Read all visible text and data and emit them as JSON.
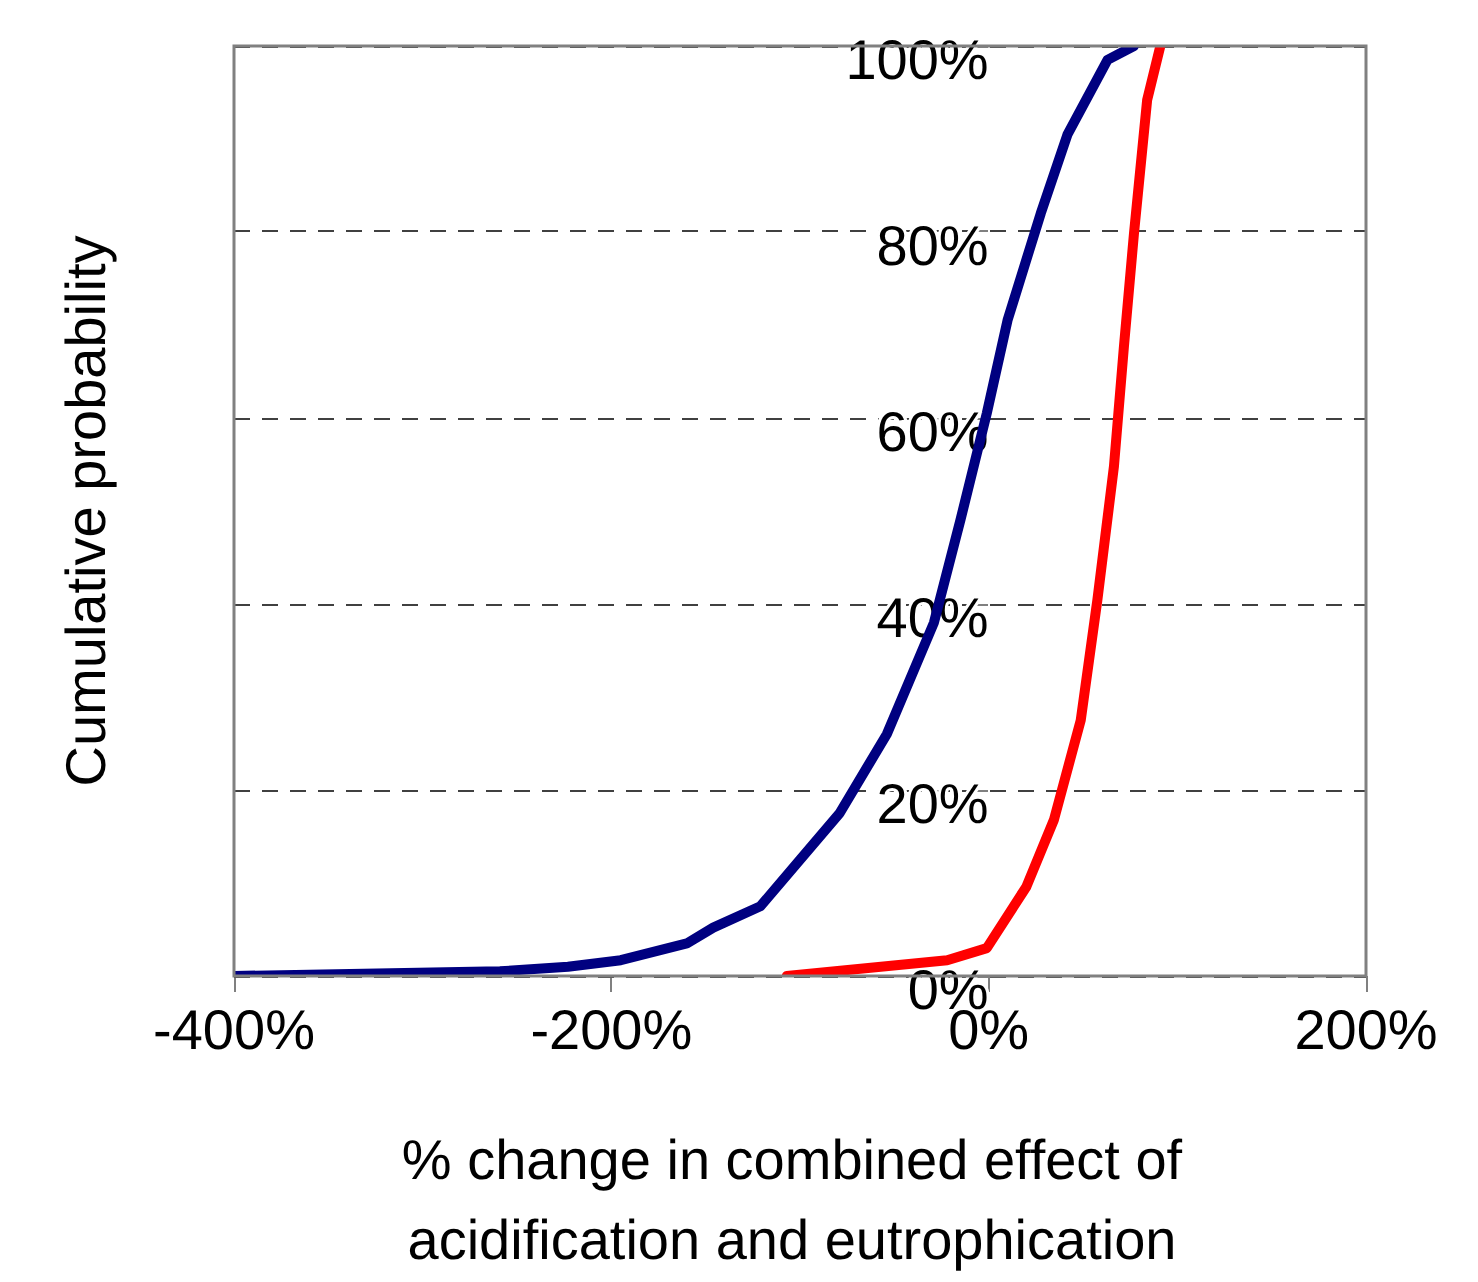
{
  "chart_data": {
    "type": "line",
    "xlabel": "% change in combined effect of acidification and eutrophication",
    "ylabel": "Cumulative probability",
    "series": [
      {
        "color": "#000080",
        "x": [
          -400,
          -259,
          -223,
          -195,
          -160,
          -146,
          -121,
          -100,
          -79,
          -54,
          -29,
          -15,
          -1,
          10,
          27.6,
          41.8,
          63,
          77
        ],
        "values": [
          0,
          0.5,
          1,
          1.7,
          3.5,
          5.2,
          7.5,
          12.5,
          17.5,
          26,
          38,
          49,
          60.5,
          70.5,
          82,
          90.5,
          98.5,
          100
        ]
      },
      {
        "color": "#ff0000",
        "x": [
          -107,
          -22,
          -1,
          20,
          34.6,
          48.8,
          57.6,
          66.4,
          71.7,
          77,
          84,
          91
        ],
        "values": [
          0,
          1.7,
          3,
          9.6,
          16.8,
          27.5,
          40.4,
          54.8,
          67.7,
          79.8,
          94.2,
          100
        ]
      }
    ],
    "xlim": [
      -400,
      200
    ],
    "xticks": [
      {
        "value": -400,
        "label": "-400%"
      },
      {
        "value": -200,
        "label": "-200%"
      },
      {
        "value": 0,
        "label": "0%"
      },
      {
        "value": 200,
        "label": "200%"
      }
    ],
    "ylim": [
      0,
      100
    ],
    "yticks": [
      {
        "value": 0,
        "label": "0%"
      },
      {
        "value": 20,
        "label": "20%"
      },
      {
        "value": 40,
        "label": "40%"
      },
      {
        "value": 60,
        "label": "60%"
      },
      {
        "value": 80,
        "label": "80%"
      },
      {
        "value": 100,
        "label": "100%"
      }
    ],
    "grid": "y"
  }
}
